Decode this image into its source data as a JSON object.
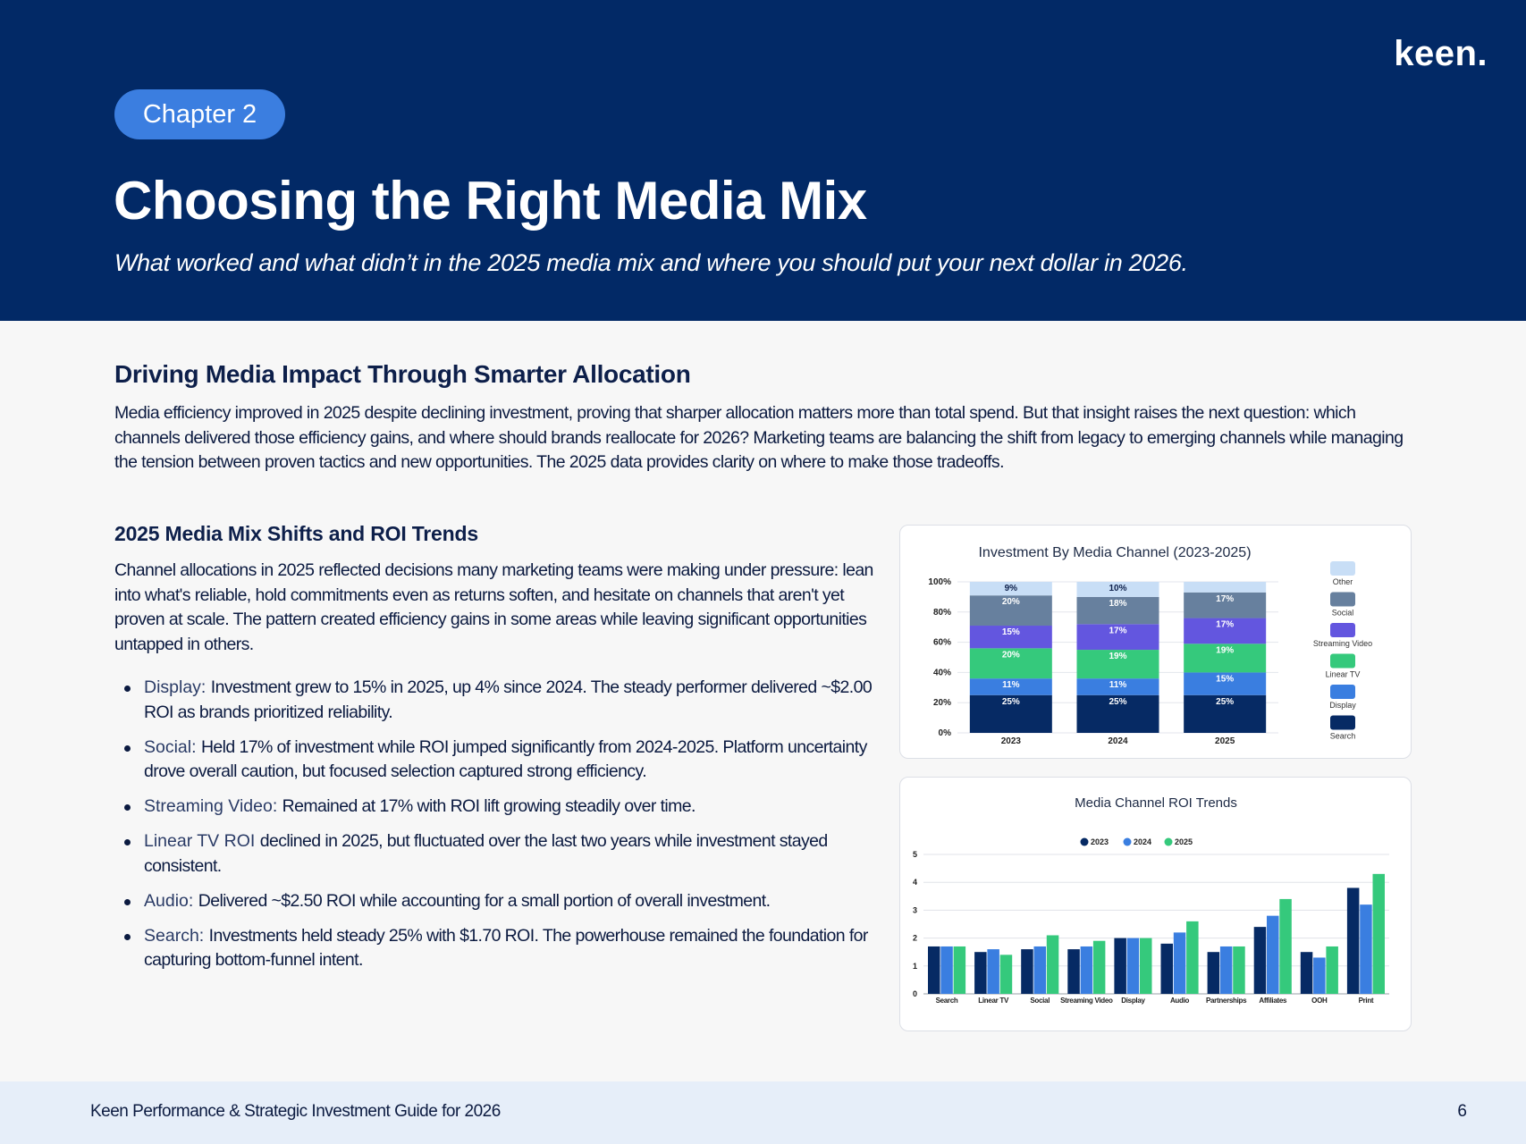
{
  "brand": {
    "logo_text": "keen."
  },
  "header": {
    "chapter_label": "Chapter 2",
    "title": "Choosing the Right Media Mix",
    "subtitle": "What worked and what didn’t in the 2025 media mix and where you should put your next dollar in 2026."
  },
  "section": {
    "heading": "Driving Media Impact Through Smarter Allocation",
    "body": "Media efficiency improved in 2025 despite declining investment, proving that sharper allocation matters more than total spend. But that insight raises the next question: which channels delivered those efficiency gains, and where should brands reallocate for 2026? Marketing teams are balancing the shift from legacy to emerging channels while managing the tension between proven tactics and new opportunities. The 2025 data provides clarity on where to make those tradeoffs."
  },
  "subsection": {
    "heading": "2025 Media Mix Shifts and ROI Trends",
    "body": "Channel allocations in 2025 reflected decisions many marketing teams were making under pressure: lean into what's reliable, hold commitments even as returns soften, and hesitate on channels that aren't yet proven at scale. The pattern created efficiency gains in some areas while leaving significant opportunities untapped in others."
  },
  "bullets": [
    {
      "key": "Display: ",
      "text": "Investment grew to 15% in 2025, up 4% since 2024. The steady performer delivered ~$2.00 ROI as brands prioritized reliability."
    },
    {
      "key": "Social: ",
      "text": "Held 17% of investment while ROI jumped significantly from 2024-2025. Platform uncertainty drove overall caution, but focused selection captured strong efficiency."
    },
    {
      "key": "Streaming Video: ",
      "text": "Remained at 17% with ROI lift growing steadily over time."
    },
    {
      "key": " Linear TV ROI ",
      "text": "declined  in 2025, but fluctuated over the last two years while investment stayed consistent."
    },
    {
      "key": "Audio: ",
      "text": "Delivered ~$2.50 ROI while accounting for a small portion of overall investment."
    },
    {
      "key": "Search: ",
      "text": "Investments held steady 25% with $1.70 ROI. The powerhouse remained the foundation for capturing bottom-funnel intent."
    }
  ],
  "colors": {
    "navy": "#022966",
    "pill": "#3b7ee0",
    "Search": "#062a64",
    "Display": "#3a7ee0",
    "Linear TV": "#35c97c",
    "Streaming Video": "#6356df",
    "Social": "#67809e",
    "Other": "#c8def6"
  },
  "chart_data": [
    {
      "type": "bar",
      "stacked": true,
      "title": "Investment By Media Channel  (2023-2025)",
      "categories": [
        "2023",
        "2024",
        "2025"
      ],
      "ylim": [
        0,
        100
      ],
      "yticks": [
        "0%",
        "20%",
        "40%",
        "60%",
        "80%",
        "100%"
      ],
      "legend_position": "right",
      "series": [
        {
          "name": "Search",
          "values": [
            25,
            25,
            25
          ],
          "labels": [
            "25%",
            "25%",
            "25%"
          ]
        },
        {
          "name": "Display",
          "values": [
            11,
            11,
            15
          ],
          "labels": [
            "11%",
            "11%",
            "15%"
          ]
        },
        {
          "name": "Linear TV",
          "values": [
            20,
            19,
            19
          ],
          "labels": [
            "20%",
            "19%",
            "19%"
          ]
        },
        {
          "name": "Streaming Video",
          "values": [
            15,
            17,
            17
          ],
          "labels": [
            "15%",
            "17%",
            "17%"
          ]
        },
        {
          "name": "Social",
          "values": [
            20,
            18,
            17
          ],
          "labels": [
            "20%",
            "18%",
            "17%"
          ]
        },
        {
          "name": "Other",
          "values": [
            9,
            10,
            7
          ],
          "labels": [
            "9%",
            "10%",
            ""
          ]
        }
      ]
    },
    {
      "type": "bar",
      "title": "Media Channel ROI Trends",
      "categories": [
        "Search",
        "Linear TV",
        "Social",
        "Streaming Video",
        "Display",
        "Audio",
        "Partnerships",
        "Affiliates",
        "OOH",
        "Print"
      ],
      "ylim": [
        0,
        5
      ],
      "yticks": [
        "0",
        "1",
        "2",
        "3",
        "4",
        "5"
      ],
      "legend_position": "top",
      "grid": true,
      "series": [
        {
          "name": "2023",
          "color": "#062a64",
          "values": [
            1.7,
            1.5,
            1.6,
            1.6,
            2.0,
            1.8,
            1.5,
            2.4,
            1.5,
            3.8
          ]
        },
        {
          "name": "2024",
          "color": "#3a7ee0",
          "values": [
            1.7,
            1.6,
            1.7,
            1.7,
            2.0,
            2.2,
            1.7,
            2.8,
            1.3,
            3.2
          ]
        },
        {
          "name": "2025",
          "color": "#35c97c",
          "values": [
            1.7,
            1.4,
            2.1,
            1.9,
            2.0,
            2.6,
            1.7,
            3.4,
            1.7,
            4.3
          ]
        }
      ]
    }
  ],
  "footer": {
    "title": "Keen Performance & Strategic Investment Guide for 2026",
    "page_number": "6"
  }
}
